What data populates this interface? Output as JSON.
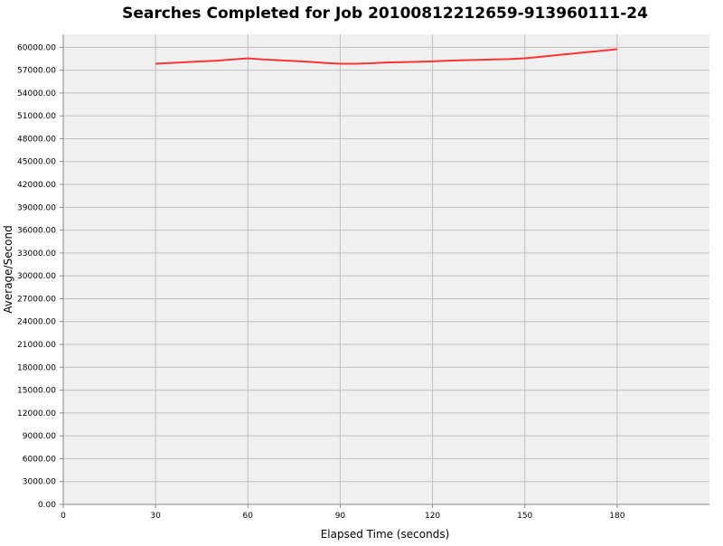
{
  "chart_data": {
    "type": "line",
    "title": "Searches Completed for Job 20100812212659-913960111-24",
    "xlabel": "Elapsed Time (seconds)",
    "ylabel": "Average/Second",
    "xlim": [
      0,
      210
    ],
    "ylim": [
      0,
      61700
    ],
    "xticks": [
      0,
      30,
      60,
      90,
      120,
      150,
      180
    ],
    "yticks": [
      0,
      3000,
      6000,
      9000,
      12000,
      15000,
      18000,
      21000,
      24000,
      27000,
      30000,
      33000,
      36000,
      39000,
      42000,
      45000,
      48000,
      51000,
      54000,
      57000,
      60000
    ],
    "grid": true,
    "colors": {
      "line": "#ff3333",
      "plot_bg": "#f0f0f0",
      "grid": "#c0c0c0"
    },
    "series": [
      {
        "x": [
          30,
          35,
          40,
          45,
          50,
          55,
          60,
          65,
          70,
          75,
          80,
          85,
          90,
          95,
          100,
          105,
          110,
          115,
          120,
          125,
          130,
          135,
          140,
          145,
          150,
          155,
          160,
          165,
          170,
          175,
          180
        ],
        "y": [
          57850,
          57950,
          58050,
          58150,
          58250,
          58400,
          58550,
          58400,
          58300,
          58200,
          58100,
          57950,
          57850,
          57850,
          57900,
          58000,
          58050,
          58100,
          58150,
          58250,
          58300,
          58350,
          58400,
          58450,
          58550,
          58750,
          58950,
          59150,
          59350,
          59550,
          59750
        ]
      }
    ]
  }
}
